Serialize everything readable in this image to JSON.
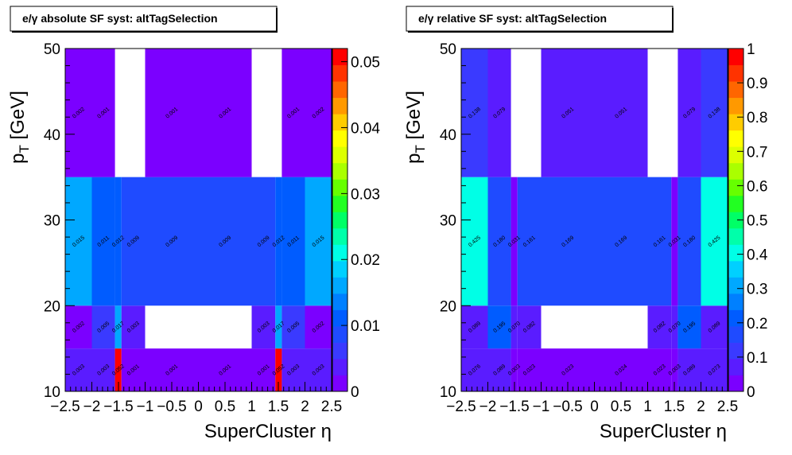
{
  "palette": [
    "#7b00ff",
    "#5a1cff",
    "#3a3aff",
    "#1f4bff",
    "#005cff",
    "#0080ff",
    "#00a8ff",
    "#00d0ff",
    "#00ffe6",
    "#00ffaa",
    "#00ff66",
    "#22ff22",
    "#66ff00",
    "#aaff00",
    "#dcff00",
    "#ffff00",
    "#ffcc00",
    "#ff9900",
    "#ff6600",
    "#ff3300",
    "#ff0000"
  ],
  "chart_data": [
    {
      "type": "heatmap",
      "title": "e/γ absolute SF syst: altTagSelection",
      "xlabel": "SuperCluster  η",
      "ylabel": "p_T [GeV]",
      "xlim": [
        -2.5,
        2.5
      ],
      "ylim": [
        10,
        50
      ],
      "zlim": [
        0,
        0.052
      ],
      "x_ticks": [
        "−2.5",
        "−2",
        "−1.5",
        "−1",
        "−0.5",
        "0",
        "0.5",
        "1",
        "1.5",
        "2",
        "2.5"
      ],
      "y_ticks": [
        "10",
        "20",
        "30",
        "40",
        "50"
      ],
      "z_ticks": [
        "0",
        "0.01",
        "0.02",
        "0.03",
        "0.04",
        "0.05"
      ],
      "x_edges": [
        -2.5,
        -2.0,
        -1.566,
        -1.4442,
        -1.0,
        0.0,
        1.0,
        1.4442,
        1.566,
        2.0,
        2.5
      ],
      "y_edges": [
        10,
        15,
        20,
        35,
        50
      ],
      "cells": [
        {
          "xi": 0,
          "yi": 0,
          "v": 0.003,
          "label": "0.003"
        },
        {
          "xi": 1,
          "yi": 0,
          "v": 0.003,
          "label": "0.003"
        },
        {
          "xi": 2,
          "yi": 0,
          "v": 0.052,
          "label": "0.052"
        },
        {
          "xi": 3,
          "yi": 0,
          "v": 0.001,
          "label": "0.001"
        },
        {
          "xi": 4,
          "yi": 0,
          "v": 0.001,
          "label": "0.001"
        },
        {
          "xi": 5,
          "yi": 0,
          "v": 0.001,
          "label": "0.001"
        },
        {
          "xi": 6,
          "yi": 0,
          "v": 0.001,
          "label": "0.001"
        },
        {
          "xi": 7,
          "yi": 0,
          "v": 0.052,
          "label": "0.052"
        },
        {
          "xi": 8,
          "yi": 0,
          "v": 0.003,
          "label": "0.003"
        },
        {
          "xi": 9,
          "yi": 0,
          "v": 0.003,
          "label": "0.003"
        },
        {
          "xi": 0,
          "yi": 1,
          "v": 0.002,
          "label": "0.002"
        },
        {
          "xi": 1,
          "yi": 1,
          "v": 0.005,
          "label": "0.005"
        },
        {
          "xi": 2,
          "yi": 1,
          "v": 0.017,
          "label": "0.017"
        },
        {
          "xi": 3,
          "yi": 1,
          "v": 0.003,
          "label": "0.003"
        },
        {
          "xi": 6,
          "yi": 1,
          "v": 0.003,
          "label": "0.003"
        },
        {
          "xi": 7,
          "yi": 1,
          "v": 0.017,
          "label": "0.017"
        },
        {
          "xi": 8,
          "yi": 1,
          "v": 0.005,
          "label": "0.005"
        },
        {
          "xi": 9,
          "yi": 1,
          "v": 0.002,
          "label": "0.002"
        },
        {
          "xi": 0,
          "yi": 2,
          "v": 0.015,
          "label": "0.015"
        },
        {
          "xi": 1,
          "yi": 2,
          "v": 0.011,
          "label": "0.011"
        },
        {
          "xi": 2,
          "yi": 2,
          "v": 0.012,
          "label": "0.012"
        },
        {
          "xi": 3,
          "yi": 2,
          "v": 0.009,
          "label": "0.009"
        },
        {
          "xi": 4,
          "yi": 2,
          "v": 0.009,
          "label": "0.009"
        },
        {
          "xi": 5,
          "yi": 2,
          "v": 0.009,
          "label": "0.009"
        },
        {
          "xi": 6,
          "yi": 2,
          "v": 0.009,
          "label": "0.009"
        },
        {
          "xi": 7,
          "yi": 2,
          "v": 0.012,
          "label": "0.012"
        },
        {
          "xi": 8,
          "yi": 2,
          "v": 0.011,
          "label": "0.011"
        },
        {
          "xi": 9,
          "yi": 2,
          "v": 0.015,
          "label": "0.015"
        },
        {
          "xi": 0,
          "yi": 3,
          "v": 0.002,
          "label": "0.002"
        },
        {
          "xi": 1,
          "yi": 3,
          "v": 0.001,
          "label": "0.001"
        },
        {
          "xi": 4,
          "yi": 3,
          "v": 0.001,
          "label": "0.001"
        },
        {
          "xi": 5,
          "yi": 3,
          "v": 0.001,
          "label": "0.001"
        },
        {
          "xi": 8,
          "yi": 3,
          "v": 0.001,
          "label": "0.001"
        },
        {
          "xi": 9,
          "yi": 3,
          "v": 0.002,
          "label": "0.002"
        }
      ]
    },
    {
      "type": "heatmap",
      "title": "e/γ relative SF syst: altTagSelection",
      "xlabel": "SuperCluster  η",
      "ylabel": "p_T [GeV]",
      "xlim": [
        -2.5,
        2.5
      ],
      "ylim": [
        10,
        50
      ],
      "zlim": [
        0,
        1
      ],
      "x_ticks": [
        "−2.5",
        "−2",
        "−1.5",
        "−1",
        "−0.5",
        "0",
        "0.5",
        "1",
        "1.5",
        "2",
        "2.5"
      ],
      "y_ticks": [
        "10",
        "20",
        "30",
        "40",
        "50"
      ],
      "z_ticks": [
        "0",
        "0.1",
        "0.2",
        "0.3",
        "0.4",
        "0.5",
        "0.6",
        "0.7",
        "0.8",
        "0.9",
        "1"
      ],
      "x_edges": [
        -2.5,
        -2.0,
        -1.566,
        -1.4442,
        -1.0,
        0.0,
        1.0,
        1.4442,
        1.566,
        2.0,
        2.5
      ],
      "y_edges": [
        10,
        15,
        20,
        35,
        50
      ],
      "cells": [
        {
          "xi": 0,
          "yi": 0,
          "v": 0.076,
          "label": "0.076"
        },
        {
          "xi": 1,
          "yi": 0,
          "v": 0.089,
          "label": "0.089"
        },
        {
          "xi": 2,
          "yi": 0,
          "v": 0.003,
          "label": "0.003"
        },
        {
          "xi": 3,
          "yi": 0,
          "v": 0.023,
          "label": "0.023"
        },
        {
          "xi": 4,
          "yi": 0,
          "v": 0.023,
          "label": "0.023"
        },
        {
          "xi": 5,
          "yi": 0,
          "v": 0.024,
          "label": "0.024"
        },
        {
          "xi": 6,
          "yi": 0,
          "v": 0.023,
          "label": "0.023"
        },
        {
          "xi": 7,
          "yi": 0,
          "v": 0.003,
          "label": "0.003"
        },
        {
          "xi": 8,
          "yi": 0,
          "v": 0.089,
          "label": "0.089"
        },
        {
          "xi": 9,
          "yi": 0,
          "v": 0.073,
          "label": "0.073"
        },
        {
          "xi": 0,
          "yi": 1,
          "v": 0.089,
          "label": "0.089"
        },
        {
          "xi": 1,
          "yi": 1,
          "v": 0.195,
          "label": "0.195"
        },
        {
          "xi": 2,
          "yi": 1,
          "v": 0.07,
          "label": "0.070"
        },
        {
          "xi": 3,
          "yi": 1,
          "v": 0.082,
          "label": "0.082"
        },
        {
          "xi": 6,
          "yi": 1,
          "v": 0.082,
          "label": "0.082"
        },
        {
          "xi": 7,
          "yi": 1,
          "v": 0.07,
          "label": "0.070"
        },
        {
          "xi": 8,
          "yi": 1,
          "v": 0.195,
          "label": "0.195"
        },
        {
          "xi": 9,
          "yi": 1,
          "v": 0.089,
          "label": "0.089"
        },
        {
          "xi": 0,
          "yi": 2,
          "v": 0.425,
          "label": "0.425"
        },
        {
          "xi": 1,
          "yi": 2,
          "v": 0.18,
          "label": "0.180"
        },
        {
          "xi": 2,
          "yi": 2,
          "v": 0.031,
          "label": "0.031"
        },
        {
          "xi": 3,
          "yi": 2,
          "v": 0.161,
          "label": "0.161"
        },
        {
          "xi": 4,
          "yi": 2,
          "v": 0.169,
          "label": "0.169"
        },
        {
          "xi": 5,
          "yi": 2,
          "v": 0.169,
          "label": "0.169"
        },
        {
          "xi": 6,
          "yi": 2,
          "v": 0.161,
          "label": "0.161"
        },
        {
          "xi": 7,
          "yi": 2,
          "v": 0.031,
          "label": "0.031"
        },
        {
          "xi": 8,
          "yi": 2,
          "v": 0.18,
          "label": "0.180"
        },
        {
          "xi": 9,
          "yi": 2,
          "v": 0.425,
          "label": "0.425"
        },
        {
          "xi": 0,
          "yi": 3,
          "v": 0.138,
          "label": "0.138"
        },
        {
          "xi": 1,
          "yi": 3,
          "v": 0.079,
          "label": "0.079"
        },
        {
          "xi": 4,
          "yi": 3,
          "v": 0.051,
          "label": "0.051"
        },
        {
          "xi": 5,
          "yi": 3,
          "v": 0.051,
          "label": "0.051"
        },
        {
          "xi": 8,
          "yi": 3,
          "v": 0.079,
          "label": "0.079"
        },
        {
          "xi": 9,
          "yi": 3,
          "v": 0.138,
          "label": "0.138"
        }
      ]
    }
  ]
}
